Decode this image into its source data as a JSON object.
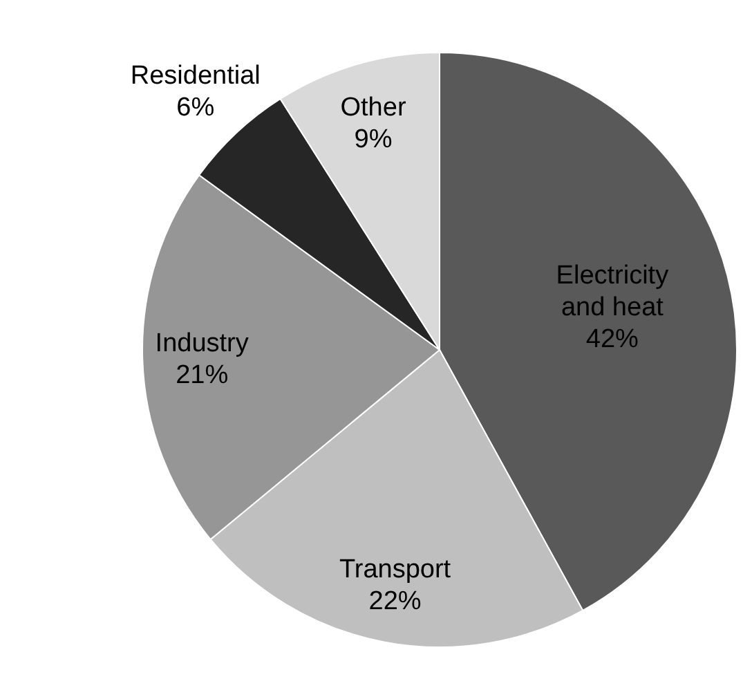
{
  "chart_data": {
    "type": "pie",
    "categories": [
      "Electricity and heat",
      "Transport",
      "Industry",
      "Residential",
      "Other"
    ],
    "values": [
      42,
      22,
      21,
      6,
      9
    ],
    "value_labels": [
      "42%",
      "22%",
      "21%",
      "6%",
      "9%"
    ],
    "colors": [
      "#595959",
      "#bfbfbf",
      "#969696",
      "#262626",
      "#d9d9d9"
    ]
  }
}
